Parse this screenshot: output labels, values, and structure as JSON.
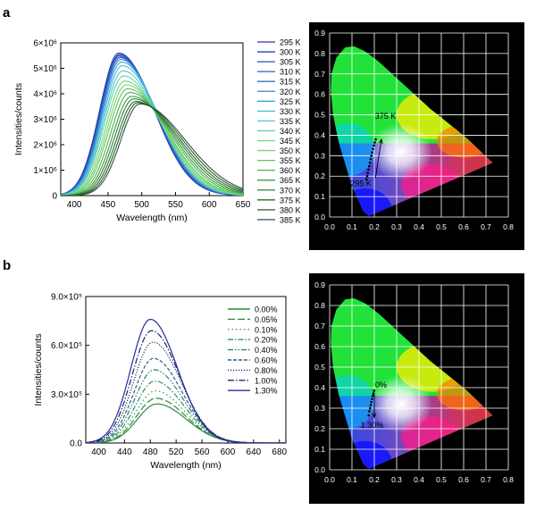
{
  "panels": [
    {
      "letter": "a"
    },
    {
      "letter": "b"
    }
  ],
  "chart_data": [
    {
      "id": "a-spectra",
      "type": "line",
      "xlabel": "Wavelength (nm)",
      "ylabel": "Intensities/counts",
      "xlim": [
        380,
        650
      ],
      "ylim": [
        0,
        6000000
      ],
      "xticks": [
        "400",
        "450",
        "500",
        "550",
        "600",
        "650"
      ],
      "yticks": [
        "0",
        "1×10⁶",
        "2×10⁶",
        "3×10⁶",
        "4×10⁶",
        "5×10⁶",
        "6×10⁶"
      ],
      "legend_position": "right-outside",
      "series": [
        {
          "name": "295 K",
          "peak_nm": 466,
          "peak": 5600000,
          "color": "#2a3aa8"
        },
        {
          "name": "300 K",
          "peak_nm": 467,
          "peak": 5550000,
          "color": "#2441b0"
        },
        {
          "name": "305 K",
          "peak_nm": 467,
          "peak": 5500000,
          "color": "#2552bb"
        },
        {
          "name": "310 K",
          "peak_nm": 468,
          "peak": 5450000,
          "color": "#2a62c4"
        },
        {
          "name": "315 K",
          "peak_nm": 468,
          "peak": 5420000,
          "color": "#3372cc"
        },
        {
          "name": "320 K",
          "peak_nm": 469,
          "peak": 5350000,
          "color": "#3c84d2"
        },
        {
          "name": "325 K",
          "peak_nm": 470,
          "peak": 5250000,
          "color": "#3fa5dc"
        },
        {
          "name": "330 K",
          "peak_nm": 471,
          "peak": 5100000,
          "color": "#44bcd8"
        },
        {
          "name": "335 K",
          "peak_nm": 472,
          "peak": 4900000,
          "color": "#53c7c9"
        },
        {
          "name": "340 K",
          "peak_nm": 473,
          "peak": 4700000,
          "color": "#62d0a8"
        },
        {
          "name": "345 K",
          "peak_nm": 475,
          "peak": 4500000,
          "color": "#6fd486"
        },
        {
          "name": "350 K",
          "peak_nm": 477,
          "peak": 4350000,
          "color": "#7ad46d"
        },
        {
          "name": "355 K",
          "peak_nm": 479,
          "peak": 4200000,
          "color": "#5fc459"
        },
        {
          "name": "360 K",
          "peak_nm": 482,
          "peak": 4050000,
          "color": "#48b24a"
        },
        {
          "name": "365 K",
          "peak_nm": 485,
          "peak": 3900000,
          "color": "#3a9a3d"
        },
        {
          "name": "370 K",
          "peak_nm": 488,
          "peak": 3800000,
          "color": "#2f8234"
        },
        {
          "name": "375 K",
          "peak_nm": 491,
          "peak": 3700000,
          "color": "#286e2c"
        },
        {
          "name": "380 K",
          "peak_nm": 494,
          "peak": 3650000,
          "color": "#2a5c2a"
        },
        {
          "name": "385 K",
          "peak_nm": 497,
          "peak": 3600000,
          "color": "#30504c"
        }
      ]
    },
    {
      "id": "a-cie",
      "type": "scatter",
      "xlim": [
        0,
        0.8
      ],
      "ylim": [
        0,
        0.9
      ],
      "xticks": [
        "0.0",
        "0.1",
        "0.2",
        "0.3",
        "0.4",
        "0.5",
        "0.6",
        "0.7",
        "0.8"
      ],
      "yticks": [
        "0.0",
        "0.1",
        "0.2",
        "0.3",
        "0.4",
        "0.5",
        "0.6",
        "0.7",
        "0.8",
        "0.9"
      ],
      "annotations": [
        {
          "text": "375 K",
          "x": 0.25,
          "y": 0.48
        },
        {
          "text": "295 K",
          "x": 0.14,
          "y": 0.15
        }
      ],
      "points": [
        {
          "x": 0.165,
          "y": 0.185
        },
        {
          "x": 0.168,
          "y": 0.2
        },
        {
          "x": 0.171,
          "y": 0.215
        },
        {
          "x": 0.174,
          "y": 0.232
        },
        {
          "x": 0.177,
          "y": 0.249
        },
        {
          "x": 0.18,
          "y": 0.266
        },
        {
          "x": 0.184,
          "y": 0.283
        },
        {
          "x": 0.187,
          "y": 0.3
        },
        {
          "x": 0.19,
          "y": 0.316
        },
        {
          "x": 0.194,
          "y": 0.333
        },
        {
          "x": 0.198,
          "y": 0.35
        },
        {
          "x": 0.202,
          "y": 0.365
        },
        {
          "x": 0.206,
          "y": 0.38
        }
      ],
      "arrow": {
        "from": [
          0.205,
          0.19
        ],
        "to": [
          0.232,
          0.38
        ]
      }
    },
    {
      "id": "b-spectra",
      "type": "line",
      "xlabel": "Wavelength (nm)",
      "ylabel": "Intensities/counts",
      "xlim": [
        380,
        690
      ],
      "ylim": [
        0,
        900000
      ],
      "xticks": [
        "400",
        "440",
        "480",
        "520",
        "560",
        "600",
        "640",
        "680"
      ],
      "yticks": [
        "0.0",
        "3.0×10⁵",
        "6.0×10⁵",
        "9.0×10⁵"
      ],
      "legend_position": "top-right",
      "series": [
        {
          "name": "0.00%",
          "peak_nm": 490,
          "peak": 240000,
          "color": "#2e8b3a",
          "dash": ""
        },
        {
          "name": "0.05%",
          "peak_nm": 489,
          "peak": 275000,
          "color": "#2e8b3a",
          "dash": "8,3"
        },
        {
          "name": "0.10%",
          "peak_nm": 488,
          "peak": 320000,
          "color": "#3a9a55",
          "dash": "1.5,3"
        },
        {
          "name": "0.20%",
          "peak_nm": 487,
          "peak": 380000,
          "color": "#2f8f6a",
          "dash": "6,2,1.5,2"
        },
        {
          "name": "0.40%",
          "peak_nm": 486,
          "peak": 450000,
          "color": "#2f7f7a",
          "dash": "6,2,1.5,2,1.5,2"
        },
        {
          "name": "0.60%",
          "peak_nm": 485,
          "peak": 520000,
          "color": "#2f5f8a",
          "dash": "4,2"
        },
        {
          "name": "0.80%",
          "peak_nm": 484,
          "peak": 620000,
          "color": "#1a2a4a",
          "dash": "1.2,1.8"
        },
        {
          "name": "1.00%",
          "peak_nm": 482,
          "peak": 690000,
          "color": "#1a2a6a",
          "dash": "7,2,1.5,2"
        },
        {
          "name": "1.30%",
          "peak_nm": 480,
          "peak": 760000,
          "color": "#2a2aa0",
          "dash": ""
        }
      ]
    },
    {
      "id": "b-cie",
      "type": "scatter",
      "xlim": [
        0,
        0.8
      ],
      "ylim": [
        0,
        0.9
      ],
      "xticks": [
        "0.0",
        "0.1",
        "0.2",
        "0.3",
        "0.4",
        "0.5",
        "0.6",
        "0.7",
        "0.8"
      ],
      "yticks": [
        "0.0",
        "0.1",
        "0.2",
        "0.3",
        "0.4",
        "0.5",
        "0.6",
        "0.7",
        "0.8",
        "0.9"
      ],
      "annotations": [
        {
          "text": "0%",
          "x": 0.23,
          "y": 0.4
        },
        {
          "text": "1.30%",
          "x": 0.19,
          "y": 0.205
        }
      ],
      "points": [
        {
          "x": 0.175,
          "y": 0.265
        },
        {
          "x": 0.178,
          "y": 0.285
        },
        {
          "x": 0.181,
          "y": 0.3
        },
        {
          "x": 0.184,
          "y": 0.315
        },
        {
          "x": 0.187,
          "y": 0.33
        },
        {
          "x": 0.19,
          "y": 0.345
        },
        {
          "x": 0.193,
          "y": 0.36
        },
        {
          "x": 0.196,
          "y": 0.372
        },
        {
          "x": 0.199,
          "y": 0.385
        }
      ],
      "arrow": {
        "from": [
          0.2,
          0.375
        ],
        "to": [
          0.2,
          0.255
        ]
      }
    }
  ]
}
